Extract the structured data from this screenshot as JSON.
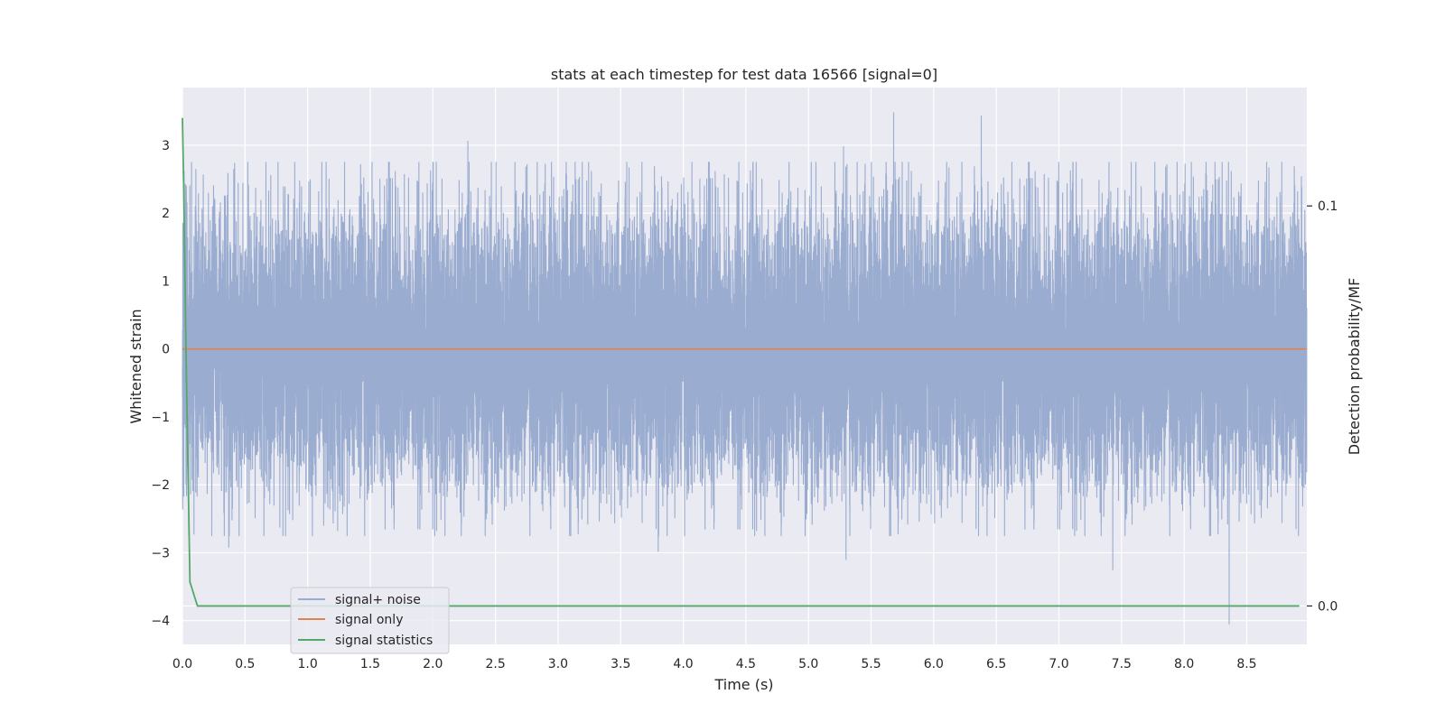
{
  "chart_data": {
    "type": "line",
    "title": "stats at each timestep for test data 16566 [signal=0]",
    "xlabel": "Time (s)",
    "ylabel": "Whitened strain",
    "y2label": "Detection probability/MF",
    "xlim": [
      0,
      8.98
    ],
    "ylim": [
      -4.35,
      3.85
    ],
    "y2lim": [
      -0.0096,
      0.1296
    ],
    "x_ticks": [
      "0.0",
      "0.5",
      "1.0",
      "1.5",
      "2.0",
      "2.5",
      "3.0",
      "3.5",
      "4.0",
      "4.5",
      "5.0",
      "5.5",
      "6.0",
      "6.5",
      "7.0",
      "7.5",
      "8.0",
      "8.5"
    ],
    "x_tick_values": [
      0,
      0.5,
      1,
      1.5,
      2,
      2.5,
      3,
      3.5,
      4,
      4.5,
      5,
      5.5,
      6,
      6.5,
      7,
      7.5,
      8,
      8.5
    ],
    "y_ticks": [
      "3",
      "2",
      "1",
      "0",
      "−1",
      "−2",
      "−3",
      "−4"
    ],
    "y_tick_values": [
      3,
      2,
      1,
      0,
      -1,
      -2,
      -3,
      -4
    ],
    "y2_ticks": [
      "0.1",
      "0.0"
    ],
    "y2_tick_values": [
      0.1,
      0.0
    ],
    "grid": true,
    "legend_position": "lower-left",
    "series": [
      {
        "name": "signal+ noise",
        "color": "#9aaccf",
        "axis": "left",
        "sample_rate": 2048,
        "duration": 8.98,
        "amplitude_sigma": 1.0,
        "peaks": [
          {
            "x": 5.68,
            "y": 3.48
          },
          {
            "x": 6.38,
            "y": 3.43
          },
          {
            "x": 2.28,
            "y": 3.06
          },
          {
            "x": 5.28,
            "y": 2.98
          },
          {
            "x": 0.37,
            "y": -2.92
          },
          {
            "x": 3.8,
            "y": -2.98
          },
          {
            "x": 5.3,
            "y": -3.1
          },
          {
            "x": 7.43,
            "y": -3.25
          },
          {
            "x": 8.36,
            "y": -4.05
          }
        ]
      },
      {
        "name": "signal only",
        "color": "#dd8452",
        "axis": "left",
        "x": [
          0,
          8.98
        ],
        "y": [
          0,
          0
        ]
      },
      {
        "name": "signal statistics",
        "color": "#55a868",
        "axis": "right",
        "x": [
          0.0,
          0.01,
          0.03,
          0.06,
          0.12,
          1.0,
          3.0,
          5.0,
          7.0,
          8.92
        ],
        "y": [
          0.122,
          0.105,
          0.061,
          0.006,
          0.0,
          0.0,
          0.0,
          0.0,
          0.0,
          0.0
        ]
      }
    ]
  }
}
